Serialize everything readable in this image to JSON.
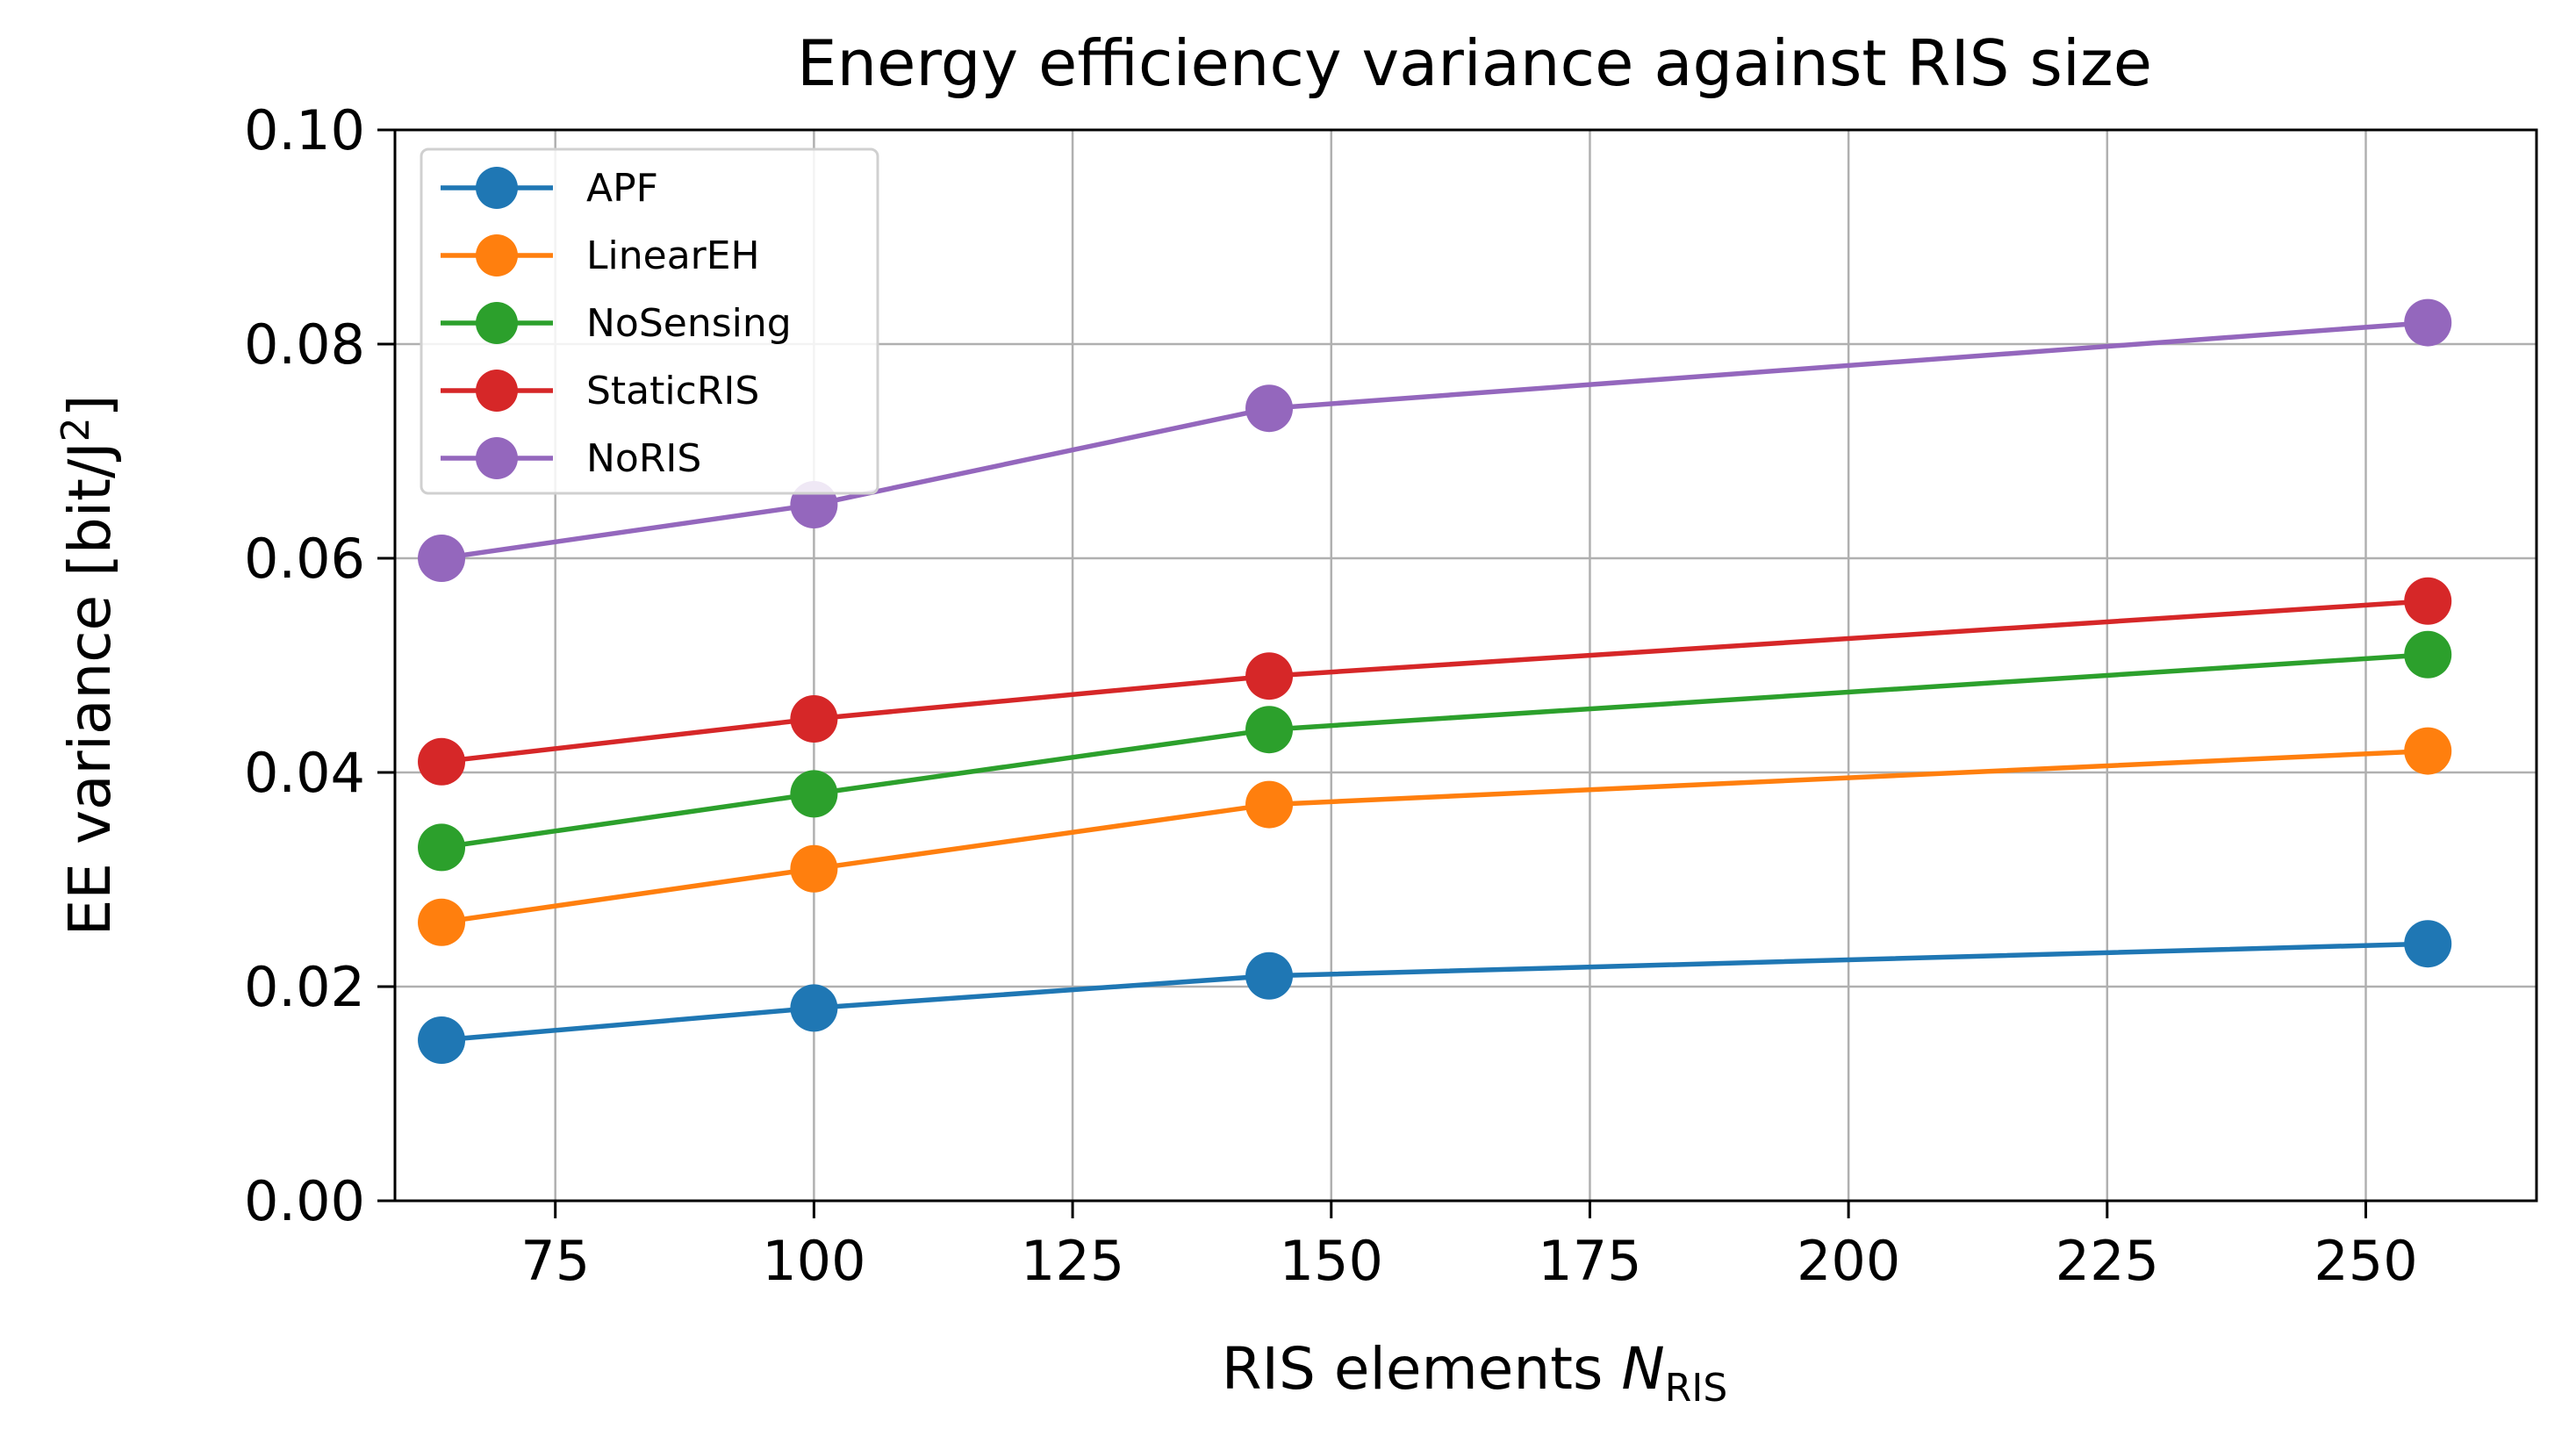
{
  "chart_data": {
    "type": "line",
    "title": "Energy efficiency variance against RIS size",
    "xlabel": {
      "main": "RIS elements ",
      "symbol": "N",
      "subscript": "RIS"
    },
    "ylabel": {
      "main": "EE variance [bit/J",
      "superscript": "2",
      "suffix": "]"
    },
    "xlim": [
      59.5,
      266.5
    ],
    "ylim": [
      0.0,
      0.1
    ],
    "xticks": [
      75,
      100,
      125,
      150,
      175,
      200,
      225,
      250
    ],
    "xtick_labels": [
      "75",
      "100",
      "125",
      "150",
      "175",
      "200",
      "225",
      "250"
    ],
    "yticks": [
      0.0,
      0.02,
      0.04,
      0.06,
      0.08,
      0.1
    ],
    "ytick_labels": [
      "0.00",
      "0.02",
      "0.04",
      "0.06",
      "0.08",
      "0.10"
    ],
    "grid": true,
    "legend_position": "upper-left",
    "x": [
      64,
      100,
      144,
      256
    ],
    "series": [
      {
        "name": "APF",
        "color": "#1f77b4",
        "values": [
          0.015,
          0.018,
          0.021,
          0.024
        ]
      },
      {
        "name": "LinearEH",
        "color": "#ff7f0e",
        "values": [
          0.026,
          0.031,
          0.037,
          0.042
        ]
      },
      {
        "name": "NoSensing",
        "color": "#2ca02c",
        "values": [
          0.033,
          0.038,
          0.044,
          0.051
        ]
      },
      {
        "name": "StaticRIS",
        "color": "#d62728",
        "values": [
          0.041,
          0.045,
          0.049,
          0.056
        ]
      },
      {
        "name": "NoRIS",
        "color": "#9467bd",
        "values": [
          0.06,
          0.065,
          0.074,
          0.082
        ]
      }
    ]
  }
}
